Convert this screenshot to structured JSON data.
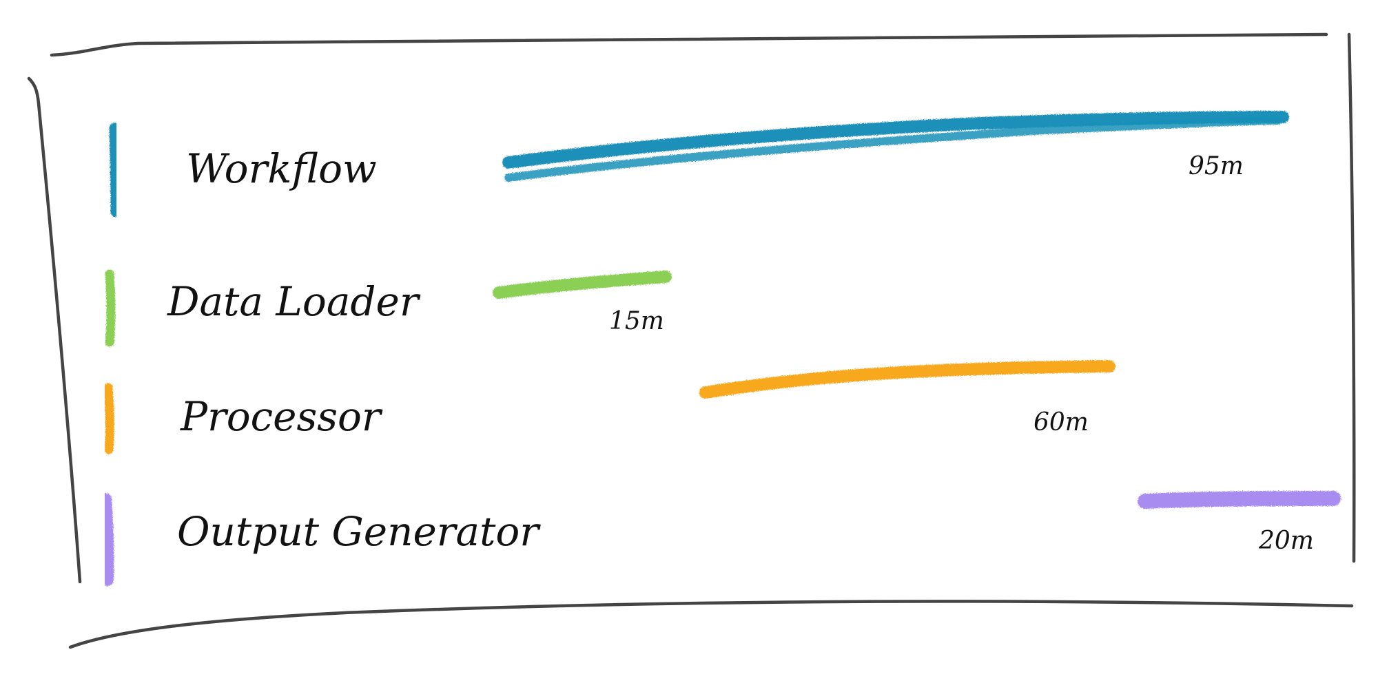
{
  "timeline": {
    "lanes": [
      {
        "id": "workflow",
        "label": "Workflow",
        "duration": "95m",
        "color": "#1a90b8"
      },
      {
        "id": "data-loader",
        "label": "Data Loader",
        "duration": "15m",
        "color": "#8ccf55"
      },
      {
        "id": "processor",
        "label": "Processor",
        "duration": "60m",
        "color": "#f7a81f"
      },
      {
        "id": "output-generator",
        "label": "Output Generator",
        "duration": "20m",
        "color": "#a98cf0"
      }
    ]
  }
}
